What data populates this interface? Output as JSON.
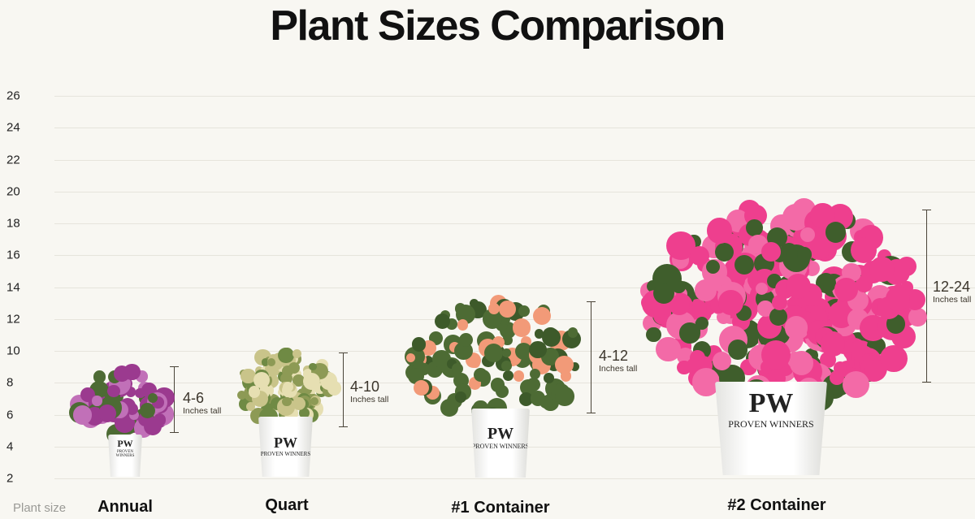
{
  "title": "Plant Sizes Comparison",
  "axis_label": "Plant size",
  "logo_text": {
    "mark": "PW",
    "name": "PROVEN WINNERS"
  },
  "chart_data": {
    "type": "range",
    "title": "Plant Sizes Comparison",
    "xlabel": "Plant size",
    "ylabel": "",
    "y_ticks": [
      26,
      24,
      22,
      20,
      18,
      16,
      14,
      12,
      10,
      8,
      6,
      4,
      2
    ],
    "ylim": [
      2,
      26
    ],
    "grid": true,
    "categories": [
      "Annual",
      "Quart",
      "#1 Container",
      "#2 Container"
    ],
    "ranges": [
      {
        "category": "Annual",
        "label": "4-6",
        "unit": "Inches tall",
        "min": 4,
        "max": 6
      },
      {
        "category": "Quart",
        "label": "4-10",
        "unit": "Inches tall",
        "min": 4,
        "max": 10
      },
      {
        "category": "#1 Container",
        "label": "4-12",
        "unit": "Inches tall",
        "min": 4,
        "max": 12
      },
      {
        "category": "#2 Container",
        "label": "12-24",
        "unit": "Inches tall",
        "min": 12,
        "max": 24
      }
    ]
  },
  "colors": {
    "annual": "#9b3a8f",
    "quart": "#c9c48a",
    "container1_flower": "#f29a78",
    "container2": "#ee3f8e",
    "foliage": "#4d6b34"
  }
}
